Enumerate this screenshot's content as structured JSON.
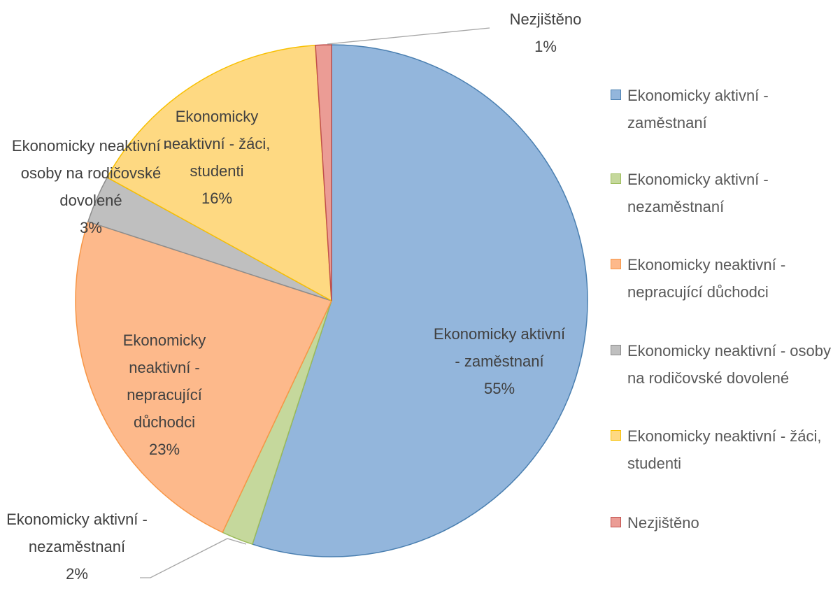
{
  "chart_data": {
    "type": "pie",
    "categories": [
      "Ekonomicky aktivní - zaměstnaní",
      "Ekonomicky aktivní - nezaměstnaní",
      "Ekonomicky neaktivní - nepracující důchodci",
      "Ekonomicky neaktivní - osoby na rodičovské dovolené",
      "Ekonomicky neaktivní - žáci, studenti",
      "Nezjištěno"
    ],
    "values": [
      55,
      2,
      23,
      3,
      16,
      1
    ],
    "value_labels": [
      "55%",
      "2%",
      "23%",
      "3%",
      "16%",
      "1%"
    ],
    "colors": [
      "#93b6dc",
      "#c5d89c",
      "#fdb98b",
      "#bfbfbf",
      "#fed982",
      "#eb9c95"
    ],
    "edgecolors": [
      "#4a7fb0",
      "#9bbb59",
      "#f79646",
      "#8c8c8c",
      "#f8c000",
      "#c0504d"
    ],
    "legend": "right"
  }
}
